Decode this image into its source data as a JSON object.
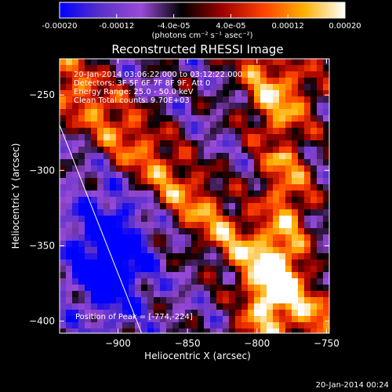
{
  "colorbar": {
    "ticks": [
      "-0.00020",
      "-0.00012",
      "-4.0e-05",
      "4.0e-05",
      "0.00012",
      "0.00020"
    ],
    "tick_values": [
      -0.0002,
      -0.00012,
      -4e-05,
      4e-05,
      0.00012,
      0.0002
    ],
    "range": [
      -0.0002,
      0.0002
    ],
    "units": "(photons cm⁻² s⁻¹ asec⁻²)",
    "stops": [
      "#0000ff",
      "#5a30c8",
      "#9a4ad8",
      "#000000",
      "#a00000",
      "#ff4000",
      "#ffb000",
      "#ffffff"
    ]
  },
  "chart_data": {
    "type": "heatmap",
    "title": "Reconstructed RHESSI Image",
    "xlabel": "Heliocentric X (arcsec)",
    "ylabel": "Heliocentric Y (arcsec)",
    "xlim": [
      -942,
      -748
    ],
    "ylim": [
      -408,
      -226
    ],
    "xticks": [
      -900,
      -850,
      -800,
      -750
    ],
    "yticks": [
      -250,
      -300,
      -350,
      -400
    ],
    "info_lines": [
      "20-Jan-2014 03:06:22.000 to 03:12:22.000",
      "Detectors: 3F 5F 6F 7F 8F 9F, Att 0",
      "Energy Range: 25.0 - 50.0 keV",
      "Clean    Total counts: 9.70E+03"
    ],
    "peak_label": "Position of Peak = [-774,-224]",
    "limb_line": [
      [
        -942,
        -270
      ],
      [
        -883,
        -408
      ]
    ]
  },
  "timestamp": "20-Jan-2014 00:24"
}
